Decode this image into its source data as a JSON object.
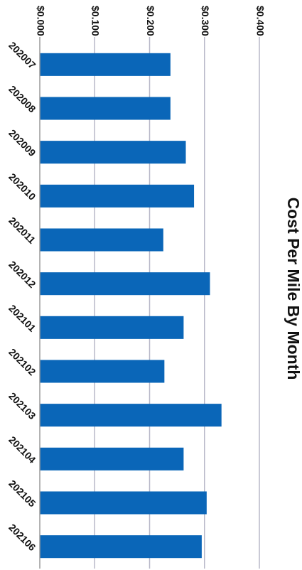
{
  "chart_data": {
    "type": "bar",
    "orientation": "horizontal",
    "title": "Cost Per Mile By Month",
    "categories": [
      "202007",
      "202008",
      "202009",
      "202010",
      "202011",
      "202012",
      "202101",
      "202102",
      "202103",
      "202104",
      "202105",
      "202106"
    ],
    "values": [
      0.238,
      0.238,
      0.266,
      0.281,
      0.225,
      0.31,
      0.262,
      0.227,
      0.331,
      0.262,
      0.304,
      0.295
    ],
    "xlim": [
      0,
      0.4
    ],
    "ticks": [
      "$0.000",
      "$0.100",
      "$0.200",
      "$0.300",
      "$0.400"
    ],
    "grid": true,
    "legend": "none",
    "colors": {
      "bar": "#0a66b8",
      "grid": "#b8b8c8",
      "axis": "#9a9a9a"
    }
  }
}
